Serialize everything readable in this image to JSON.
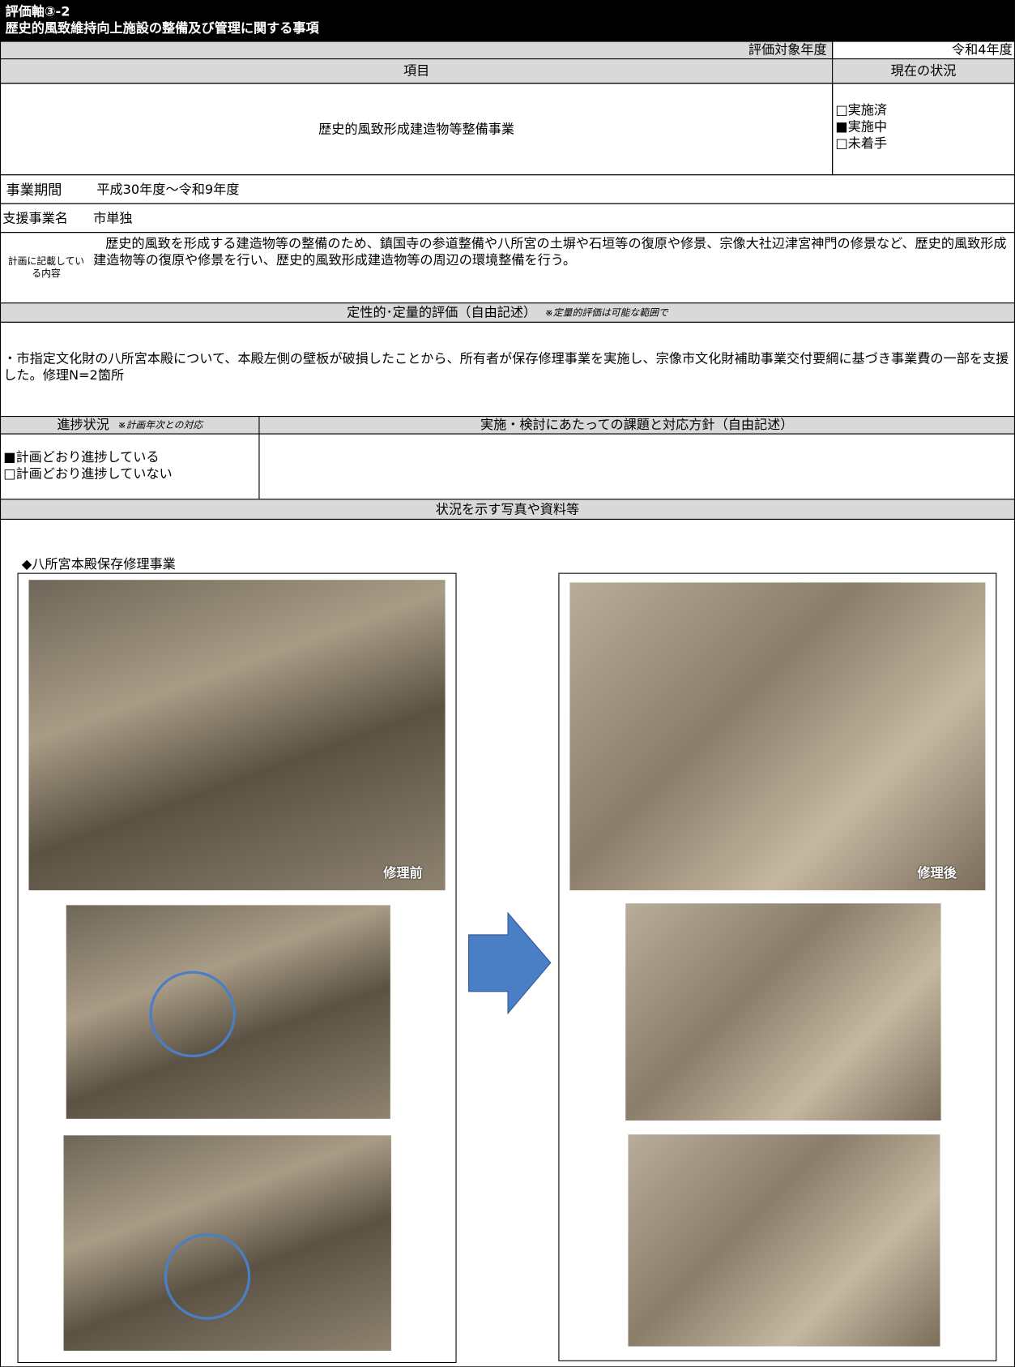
{
  "header": {
    "title": "評価軸③-2",
    "subtitle": "歴史的風致維持向上施設の整備及び管理に関する事項"
  },
  "year": {
    "label": "評価対象年度",
    "value": "令和4年度"
  },
  "columns": {
    "item": "項目",
    "status": "現在の状況"
  },
  "item": {
    "name": "歴史的風致形成建造物等整備事業",
    "status": [
      "□実施済",
      "■実施中",
      "□未着手"
    ]
  },
  "period": {
    "label": "事業期間",
    "value": "平成30年度～令和9年度"
  },
  "support": {
    "label": "支援事業名",
    "value": "市単独"
  },
  "plan": {
    "label": "計画に記載している内容",
    "value": "歴史的風致を形成する建造物等の整備のため、鎮国寺の参道整備や八所宮の土塀や石垣等の復原や修景、宗像大社辺津宮神門の修景など、歴史的風致形成建造物等の復原や修景を行い、歴史的風致形成建造物等の周辺の環境整備を行う。"
  },
  "evaluation": {
    "title": "定性的･定量的評価（自由記述）",
    "note": "※定量的評価は可能な範囲で",
    "text": "・市指定文化財の八所宮本殿について、本殿左側の壁板が破損したことから、所有者が保存修理事業を実施し、宗像市文化財補助事業交付要綱に基づき事業費の一部を支援した。修理N=2箇所"
  },
  "progress": {
    "title": "進捗状況",
    "note": "※計画年次との対応",
    "options": [
      "■計画どおり進捗している",
      "□計画どおり進捗していない"
    ],
    "issues_title": "実施・検討にあたっての課題と対応方針（自由記述）"
  },
  "photos": {
    "title": "状況を示す写真や資料等",
    "caption": "◆八所宮本殿保存修理事業",
    "before": "修理前",
    "after": "修理後"
  }
}
